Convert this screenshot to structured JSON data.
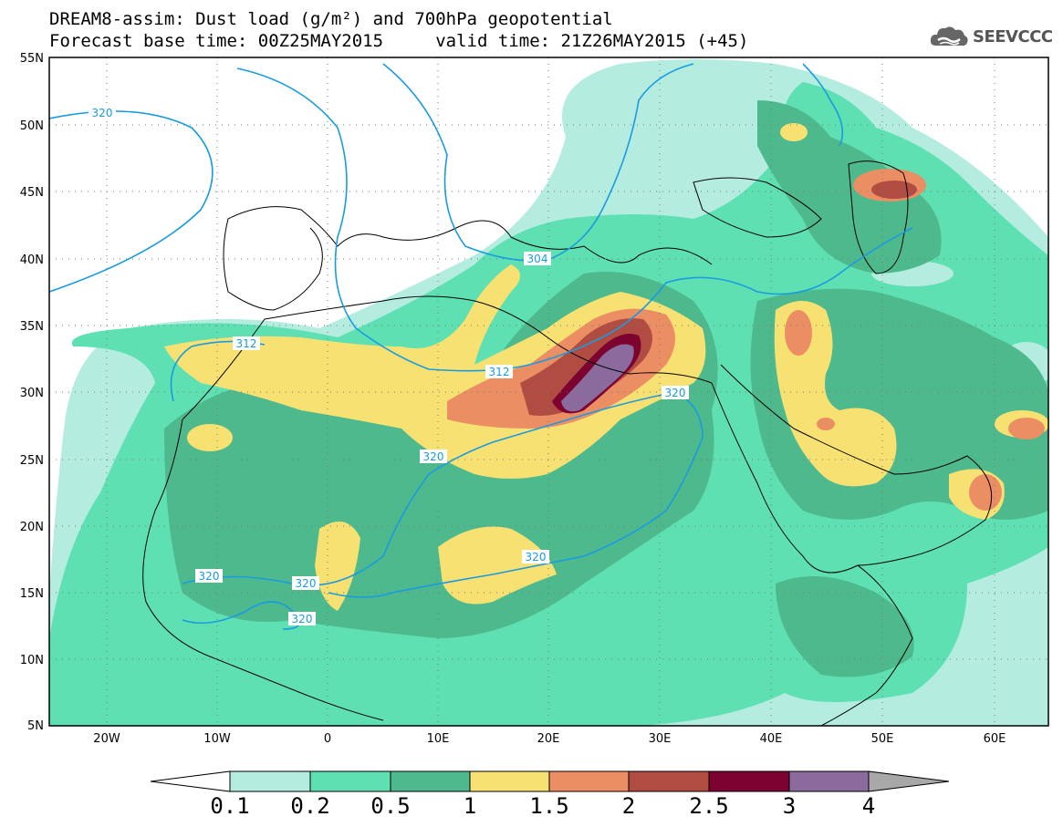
{
  "header": {
    "line1": "DREAM8-assim: Dust load (g/m²) and 700hPa geopotential",
    "line2": "Forecast base time: 00Z25MAY2015     valid time: 21Z26MAY2015 (+45)",
    "logo": "SEEVCCC"
  },
  "map": {
    "lat_labels": [
      "55N",
      "50N",
      "45N",
      "40N",
      "35N",
      "30N",
      "25N",
      "20N",
      "15N",
      "10N",
      "5N"
    ],
    "lon_labels": [
      "20W",
      "10W",
      "0",
      "10E",
      "20E",
      "30E",
      "40E",
      "50E",
      "60E"
    ],
    "contour_labels": [
      "320",
      "304",
      "312",
      "312",
      "320",
      "320",
      "320",
      "320",
      "320",
      "320"
    ]
  },
  "legend": {
    "labels": [
      "0.1",
      "0.2",
      "0.5",
      "1",
      "1.5",
      "2",
      "2.5",
      "3",
      "4"
    ],
    "colors": [
      "#b4ede0",
      "#5fe0b2",
      "#4fb98e",
      "#f8e173",
      "#ec8e64",
      "#b14c42",
      "#7c0230",
      "#8b6a9d",
      "#a8a8a8"
    ]
  },
  "colors": {
    "contour": "#1a9be0",
    "c1": "#b4ede0",
    "c2": "#5fe0b2",
    "c3": "#4fb98e",
    "c4": "#f8e173",
    "c5": "#ec8e64",
    "c6": "#b14c42",
    "c7": "#7c0230",
    "c8": "#8b6a9d"
  }
}
